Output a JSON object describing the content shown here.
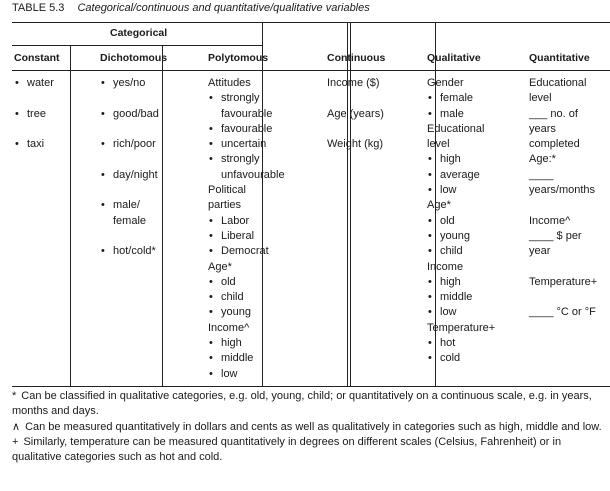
{
  "caption": {
    "number": "TABLE 5.3",
    "title": "Categorical/continuous and quantitative/qualitative variables"
  },
  "headers": {
    "group": "Categorical",
    "constant": "Constant",
    "dichotomous": "Dichotomous",
    "polytomous": "Polytomous",
    "continuous": "Continuous",
    "qualitative": "Qualitative",
    "quantitative": "Quantitative"
  },
  "columns": {
    "constant": [
      {
        "t": "water",
        "b": true
      },
      {
        "t": ""
      },
      {
        "t": "tree",
        "b": true
      },
      {
        "t": ""
      },
      {
        "t": "taxi",
        "b": true
      }
    ],
    "dichotomous": [
      {
        "t": "yes/no",
        "b": true
      },
      {
        "t": ""
      },
      {
        "t": "good/bad",
        "b": true
      },
      {
        "t": ""
      },
      {
        "t": "rich/poor",
        "b": true
      },
      {
        "t": ""
      },
      {
        "t": "day/night",
        "b": true
      },
      {
        "t": ""
      },
      {
        "t": "male/",
        "b": true
      },
      {
        "t": "female",
        "i": true
      },
      {
        "t": ""
      },
      {
        "t": "hot/cold*",
        "b": true
      }
    ],
    "polytomous": [
      {
        "t": "Attitudes"
      },
      {
        "t": "strongly",
        "b": true
      },
      {
        "t": "favourable",
        "i": true
      },
      {
        "t": "favourable",
        "b": true
      },
      {
        "t": "uncertain",
        "b": true
      },
      {
        "t": "strongly",
        "b": true
      },
      {
        "t": "unfavourable",
        "i": true
      },
      {
        "t": "Political"
      },
      {
        "t": "parties"
      },
      {
        "t": "Labor",
        "b": true
      },
      {
        "t": "Liberal",
        "b": true
      },
      {
        "t": "Democrat",
        "b": true
      },
      {
        "t": "Age*"
      },
      {
        "t": "old",
        "b": true
      },
      {
        "t": "child",
        "b": true
      },
      {
        "t": "young",
        "b": true
      },
      {
        "t": "Income^"
      },
      {
        "t": "high",
        "b": true
      },
      {
        "t": "middle",
        "b": true
      },
      {
        "t": "low",
        "b": true
      }
    ],
    "continuous": [
      {
        "t": "Income ($)"
      },
      {
        "t": ""
      },
      {
        "t": "Age (years)"
      },
      {
        "t": ""
      },
      {
        "t": "Weight (kg)"
      }
    ],
    "qualitative": [
      {
        "t": "Gender"
      },
      {
        "t": "female",
        "b": true
      },
      {
        "t": "male",
        "b": true
      },
      {
        "t": "Educational"
      },
      {
        "t": "level"
      },
      {
        "t": "high",
        "b": true
      },
      {
        "t": "average",
        "b": true
      },
      {
        "t": "low",
        "b": true
      },
      {
        "t": "Age*"
      },
      {
        "t": "old",
        "b": true
      },
      {
        "t": "young",
        "b": true
      },
      {
        "t": "child",
        "b": true
      },
      {
        "t": "Income"
      },
      {
        "t": "high",
        "b": true
      },
      {
        "t": "middle",
        "b": true
      },
      {
        "t": "low",
        "b": true
      },
      {
        "t": "Temperature+"
      },
      {
        "t": "hot",
        "b": true
      },
      {
        "t": "cold",
        "b": true
      }
    ],
    "quantitative": [
      {
        "t": "Educational"
      },
      {
        "t": "level"
      },
      {
        "t": "___ no. of"
      },
      {
        "t": "years"
      },
      {
        "t": "completed"
      },
      {
        "t": "Age:*"
      },
      {
        "t": "____"
      },
      {
        "t": "years/months"
      },
      {
        "t": ""
      },
      {
        "t": "Income^"
      },
      {
        "t": "____ $ per"
      },
      {
        "t": "year"
      },
      {
        "t": ""
      },
      {
        "t": "Temperature+"
      },
      {
        "t": ""
      },
      {
        "t": "____ °C or °F"
      }
    ]
  },
  "footnotes": [
    {
      "symbol": "*",
      "text": "Can be classified in qualitative categories, e.g. old, young, child; or quantitatively on a continuous scale, e.g. in years, months and days."
    },
    {
      "symbol": "∧",
      "text": "Can be measured quantitatively in dollars and cents as well as qualitatively in categories such as high, middle and low."
    },
    {
      "symbol": "+",
      "text": "Similarly, temperature can be measured quantitatively in degrees on different scales (Celsius, Fahrenheit) or in qualitative categories such as hot and cold."
    }
  ]
}
